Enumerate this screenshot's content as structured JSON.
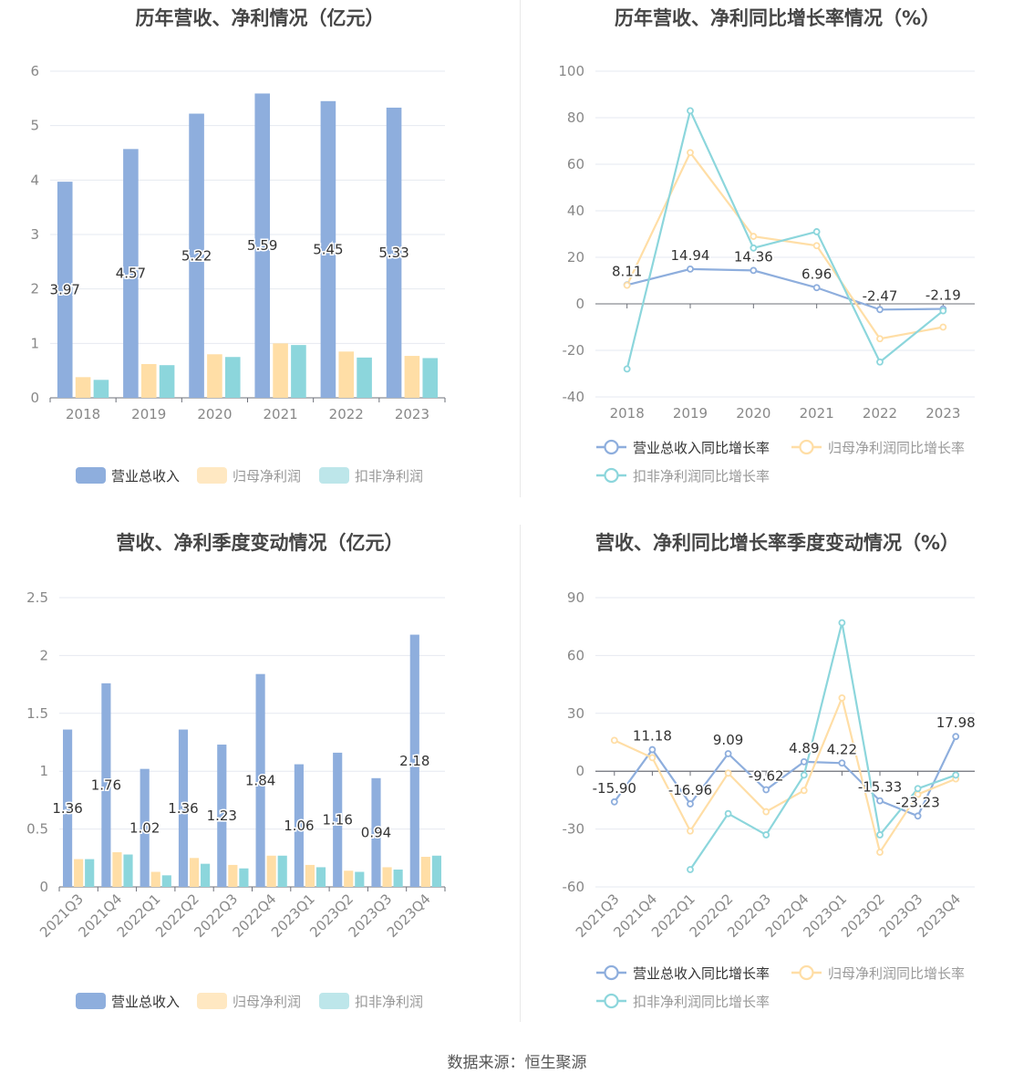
{
  "source_prefix": "数据来源：",
  "source_name": "恒生聚源",
  "charts": [
    {
      "id": "annual-bar",
      "title": "历年营收、净利情况（亿元）",
      "chart_data": {
        "type": "bar",
        "categories": [
          "2018",
          "2019",
          "2020",
          "2021",
          "2022",
          "2023"
        ],
        "ylim": [
          0,
          6
        ],
        "yticks": [
          0,
          1,
          2,
          3,
          4,
          5,
          6
        ],
        "series": [
          {
            "name": "营业总收入",
            "color": "#8eaedd",
            "values": [
              3.97,
              4.57,
              5.22,
              5.59,
              5.45,
              5.33
            ],
            "labels": [
              "3.97",
              "4.57",
              "5.22",
              "5.59",
              "5.45",
              "5.33"
            ]
          },
          {
            "name": "归母净利润",
            "color": "#ffdea6",
            "values": [
              0.38,
              0.62,
              0.8,
              1.0,
              0.85,
              0.77
            ]
          },
          {
            "name": "扣非净利润",
            "color": "#8cd6dc",
            "values": [
              0.33,
              0.6,
              0.75,
              0.97,
              0.74,
              0.73
            ]
          }
        ],
        "legend": [
          "营业总收入",
          "归母净利润",
          "扣非净利润"
        ]
      }
    },
    {
      "id": "annual-line",
      "title": "历年营收、净利同比增长率情况（%）",
      "chart_data": {
        "type": "line",
        "categories": [
          "2018",
          "2019",
          "2020",
          "2021",
          "2022",
          "2023"
        ],
        "ylim": [
          -40,
          100
        ],
        "yticks": [
          -40,
          -20,
          0,
          20,
          40,
          60,
          80,
          100
        ],
        "series": [
          {
            "name": "营业总收入同比增长率",
            "color": "#8eaedd",
            "values": [
              8.11,
              14.94,
              14.36,
              6.96,
              -2.47,
              -2.19
            ],
            "labels": [
              "8.11",
              "14.94",
              "14.36",
              "6.96",
              "-2.47",
              "-2.19"
            ]
          },
          {
            "name": "归母净利润同比增长率",
            "color": "#ffdea6",
            "values": [
              8,
              65,
              29,
              25,
              -15,
              -10
            ]
          },
          {
            "name": "扣非净利润同比增长率",
            "color": "#8cd6dc",
            "values": [
              -28,
              83,
              24,
              31,
              -25,
              -3
            ]
          }
        ],
        "legend": [
          "营业总收入同比增长率",
          "归母净利润同比增长率",
          "扣非净利润同比增长率"
        ]
      }
    },
    {
      "id": "quarter-bar",
      "title": "营收、净利季度变动情况（亿元）",
      "chart_data": {
        "type": "bar",
        "categories": [
          "2021Q3",
          "2021Q4",
          "2022Q1",
          "2022Q2",
          "2022Q3",
          "2022Q4",
          "2023Q1",
          "2023Q2",
          "2023Q3",
          "2023Q4"
        ],
        "ylim": [
          0,
          2.5
        ],
        "yticks": [
          0,
          0.5,
          1,
          1.5,
          2,
          2.5
        ],
        "series": [
          {
            "name": "营业总收入",
            "color": "#8eaedd",
            "values": [
              1.36,
              1.76,
              1.02,
              1.36,
              1.23,
              1.84,
              1.06,
              1.16,
              0.94,
              2.18
            ],
            "labels": [
              "1.36",
              "1.76",
              "1.02",
              "1.36",
              "1.23",
              "1.84",
              "1.06",
              "1.16",
              "0.94",
              "2.18"
            ]
          },
          {
            "name": "归母净利润",
            "color": "#ffdea6",
            "values": [
              0.24,
              0.3,
              0.13,
              0.25,
              0.19,
              0.27,
              0.19,
              0.14,
              0.17,
              0.26
            ]
          },
          {
            "name": "扣非净利润",
            "color": "#8cd6dc",
            "values": [
              0.24,
              0.28,
              0.1,
              0.2,
              0.16,
              0.27,
              0.17,
              0.13,
              0.15,
              0.27
            ]
          }
        ],
        "legend": [
          "营业总收入",
          "归母净利润",
          "扣非净利润"
        ]
      }
    },
    {
      "id": "quarter-line",
      "title": "营收、净利同比增长率季度变动情况（%）",
      "chart_data": {
        "type": "line",
        "categories": [
          "2021Q3",
          "2021Q4",
          "2022Q1",
          "2022Q2",
          "2022Q3",
          "2022Q4",
          "2023Q1",
          "2023Q2",
          "2023Q3",
          "2023Q4"
        ],
        "ylim": [
          -60,
          90
        ],
        "yticks": [
          -60,
          -30,
          0,
          30,
          60,
          90
        ],
        "series": [
          {
            "name": "营业总收入同比增长率",
            "color": "#8eaedd",
            "values": [
              -15.9,
              11.18,
              -16.96,
              9.09,
              -9.62,
              4.89,
              4.22,
              -15.33,
              -23.23,
              17.98
            ],
            "labels": [
              "-15.90",
              "11.18",
              "-16.96",
              "9.09",
              "-9.62",
              "4.89",
              "4.22",
              "-15.33",
              "-23.23",
              "17.98"
            ]
          },
          {
            "name": "归母净利润同比增长率",
            "color": "#ffdea6",
            "values": [
              16,
              7,
              -31,
              -1,
              -21,
              -10,
              38,
              -42,
              -12,
              -4
            ]
          },
          {
            "name": "扣非净利润同比增长率",
            "color": "#8cd6dc",
            "values": [
              null,
              null,
              -51,
              -22,
              -33,
              -2,
              77,
              -33,
              -9,
              -2
            ]
          }
        ],
        "legend": [
          "营业总收入同比增长率",
          "归母净利润同比增长率",
          "扣非净利润同比增长率"
        ]
      }
    }
  ]
}
